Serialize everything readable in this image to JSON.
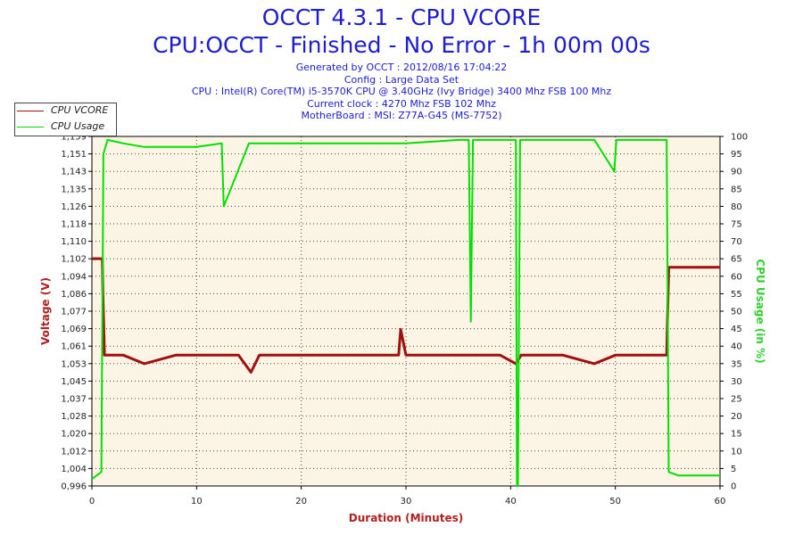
{
  "header": {
    "title": "OCCT 4.3.1 - CPU VCORE",
    "subtitle": "CPU:OCCT - Finished - No Error - 1h 00m 00s",
    "info_lines": [
      "Generated by OCCT : 2012/08/16 17:04:22",
      "Config : Large Data Set",
      "CPU : Intel(R) Core(TM) i5-3570K CPU @ 3.40GHz (Ivy Bridge) 3400 Mhz FSB 100 Mhz",
      "Current clock : 4270 Mhz FSB 102 Mhz",
      "MotherBoard : MSI: Z77A-G45 (MS-7752)"
    ]
  },
  "colors": {
    "vcore": "#a01010",
    "usage": "#00e000",
    "plot_bg": "#fcf4e4",
    "grid": "#444444",
    "axis_label_red": "#b02020",
    "axis_label_green": "#30d030",
    "title_blue": "#1c1cd0"
  },
  "chart_data": {
    "type": "line",
    "title": "OCCT 4.3.1 - CPU VCORE",
    "xlabel": "Duration (Minutes)",
    "ylabel": "Voltage (V)",
    "y2label": "CPU Usage (in %)",
    "xlim": [
      0,
      60
    ],
    "ylim": [
      0.996,
      1.159
    ],
    "y2lim": [
      0,
      100
    ],
    "x_ticks": [
      "0",
      "10",
      "20",
      "30",
      "40",
      "50",
      "60"
    ],
    "y_ticks": [
      "0,996",
      "1,004",
      "1,012",
      "1,020",
      "1,028",
      "1,037",
      "1,045",
      "1,053",
      "1,061",
      "1,069",
      "1,077",
      "1,086",
      "1,094",
      "1,102",
      "1,110",
      "1,118",
      "1,126",
      "1,135",
      "1,143",
      "1,151",
      "1,159"
    ],
    "y2_ticks": [
      "0",
      "5",
      "10",
      "15",
      "20",
      "25",
      "30",
      "35",
      "40",
      "45",
      "50",
      "55",
      "60",
      "65",
      "70",
      "75",
      "80",
      "85",
      "90",
      "95",
      "100"
    ],
    "grid": true,
    "legend_position": "top-left",
    "series": [
      {
        "name": "CPU VCORE",
        "axis": "left",
        "x": [
          0,
          1,
          1.05,
          1.2,
          3,
          5,
          8,
          10,
          12,
          14,
          15.2,
          16,
          20,
          25,
          29.3,
          29.5,
          30,
          35,
          39,
          40.5,
          41,
          45,
          48,
          50,
          52,
          54.9,
          55.1,
          57,
          59,
          60
        ],
        "y": [
          1.102,
          1.102,
          1.086,
          1.057,
          1.057,
          1.053,
          1.057,
          1.057,
          1.057,
          1.057,
          1.049,
          1.057,
          1.057,
          1.057,
          1.057,
          1.069,
          1.057,
          1.057,
          1.057,
          1.053,
          1.057,
          1.057,
          1.053,
          1.057,
          1.057,
          1.057,
          1.098,
          1.098,
          1.098,
          1.098
        ]
      },
      {
        "name": "CPU Usage",
        "axis": "right",
        "x": [
          0,
          0.9,
          1.1,
          1.5,
          3,
          5,
          8,
          10,
          12.4,
          12.6,
          15,
          20,
          25,
          30,
          35,
          36,
          36.2,
          36.4,
          38,
          40.5,
          40.6,
          40.7,
          40.9,
          42,
          45,
          48,
          49.9,
          50.1,
          52,
          54.9,
          55.1,
          56,
          58,
          60
        ],
        "y": [
          2,
          4,
          95,
          99,
          98,
          97,
          97,
          97,
          98,
          80,
          98,
          98,
          98,
          98,
          99,
          99,
          47,
          99,
          99,
          99,
          0,
          0,
          99,
          99,
          99,
          99,
          90,
          99,
          99,
          99,
          4,
          3,
          3,
          3
        ]
      }
    ]
  }
}
